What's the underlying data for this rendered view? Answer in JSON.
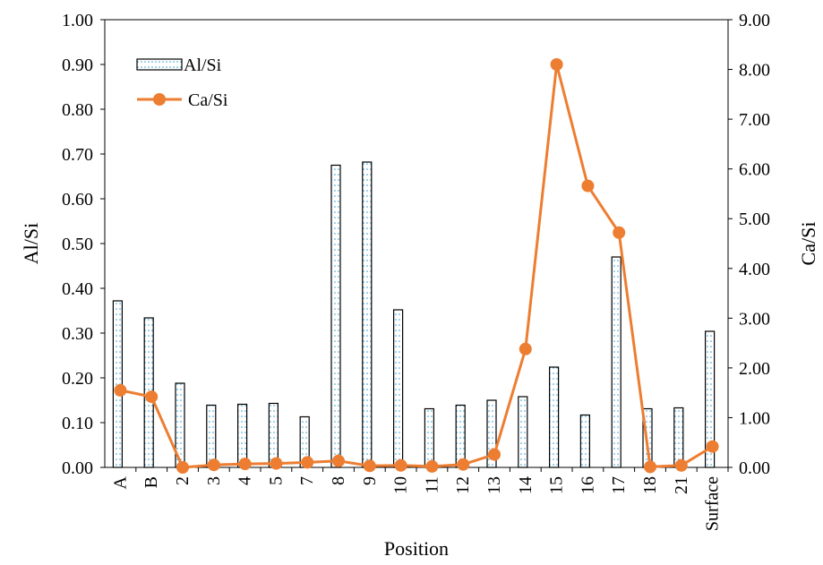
{
  "chart_data": {
    "type": "bar+line",
    "xlabel": "Position",
    "categories": [
      "A",
      "B",
      "2",
      "3",
      "4",
      "5",
      "7",
      "8",
      "9",
      "10",
      "11",
      "12",
      "13",
      "14",
      "15",
      "16",
      "17",
      "18",
      "21",
      "Surface"
    ],
    "series": [
      {
        "name": "Al/Si",
        "type": "bar",
        "axis": "left",
        "values": [
          0.372,
          0.334,
          0.188,
          0.139,
          0.141,
          0.143,
          0.113,
          0.675,
          0.682,
          0.352,
          0.131,
          0.139,
          0.15,
          0.158,
          0.224,
          0.117,
          0.47,
          0.131,
          0.133,
          0.304
        ]
      },
      {
        "name": "Ca/Si",
        "type": "line",
        "axis": "right",
        "values": [
          1.55,
          1.42,
          0.0,
          0.05,
          0.07,
          0.08,
          0.1,
          0.13,
          0.03,
          0.04,
          0.02,
          0.06,
          0.26,
          2.38,
          8.1,
          5.66,
          4.72,
          0.01,
          0.04,
          0.42
        ]
      }
    ],
    "y_left": {
      "label": "Al/Si",
      "ylim": [
        0,
        1.0
      ],
      "ticks": [
        "0.00",
        "0.10",
        "0.20",
        "0.30",
        "0.40",
        "0.50",
        "0.60",
        "0.70",
        "0.80",
        "0.90",
        "1.00"
      ]
    },
    "y_right": {
      "label": "Ca/Si",
      "ylim": [
        0,
        9.0
      ],
      "ticks": [
        "0.00",
        "1.00",
        "2.00",
        "3.00",
        "4.00",
        "5.00",
        "6.00",
        "7.00",
        "8.00",
        "9.00"
      ]
    },
    "grid": false,
    "legend_position": "top-left",
    "colors": {
      "bar_fill": "#ffffff",
      "bar_stroke": "#000000",
      "bar_dots": "#2f9fd3",
      "line": "#ed7d31"
    }
  }
}
